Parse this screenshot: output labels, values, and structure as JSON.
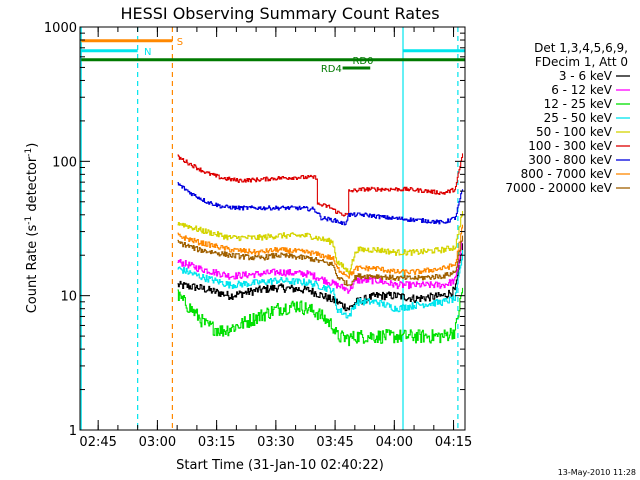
{
  "chart_data": {
    "type": "line",
    "title": "HESSI Observing Summary Count Rates",
    "xlabel": "Start Time (31-Jan-10 02:40:22)",
    "ylabel_main": "Count Rate (s",
    "ylabel_sup1": "-1",
    "ylabel_mid": " detector",
    "ylabel_sup2": "-1",
    "ylabel_end": ")",
    "yscale": "log",
    "ylim": [
      1,
      1000
    ],
    "xlim_minutes": [
      0,
      97.5
    ],
    "x_ticks": [
      {
        "label": "02:45",
        "t": 4.6
      },
      {
        "label": "03:00",
        "t": 19.6
      },
      {
        "label": "03:15",
        "t": 34.6
      },
      {
        "label": "03:30",
        "t": 49.6
      },
      {
        "label": "03:45",
        "t": 64.6
      },
      {
        "label": "04:00",
        "t": 79.6
      },
      {
        "label": "04:15",
        "t": 94.6
      }
    ],
    "y_ticks": [
      {
        "label": "1",
        "v": 1
      },
      {
        "label": "10",
        "v": 10
      },
      {
        "label": "100",
        "v": 100
      },
      {
        "label": "1000",
        "v": 1000
      }
    ],
    "legend_header": [
      "Det 1,3,4,5,6,9,",
      "FDecim 1, Att 0"
    ],
    "series": [
      {
        "name": "3 - 6 keV",
        "color": "#000000",
        "noise": 0.07,
        "points": [
          [
            24.7,
            12
          ],
          [
            30,
            11.5
          ],
          [
            38,
            10
          ],
          [
            45,
            11
          ],
          [
            50,
            11.5
          ],
          [
            58,
            11
          ],
          [
            65,
            9
          ],
          [
            68,
            8
          ],
          [
            70,
            9
          ],
          [
            75,
            10
          ],
          [
            80,
            10
          ],
          [
            85,
            9.5
          ],
          [
            92,
            10
          ],
          [
            95,
            11
          ],
          [
            97,
            25
          ]
        ]
      },
      {
        "name": "6 - 12 keV",
        "color": "#ff00ff",
        "noise": 0.06,
        "points": [
          [
            24.7,
            18
          ],
          [
            30,
            16
          ],
          [
            38,
            14
          ],
          [
            45,
            14.5
          ],
          [
            50,
            15
          ],
          [
            58,
            14.5
          ],
          [
            65,
            12
          ],
          [
            68,
            11
          ],
          [
            70,
            13
          ],
          [
            75,
            13
          ],
          [
            80,
            12
          ],
          [
            85,
            12
          ],
          [
            92,
            12
          ],
          [
            95,
            13
          ],
          [
            97,
            28
          ]
        ]
      },
      {
        "name": "12 - 25 keV",
        "color": "#00e000",
        "noise": 0.12,
        "points": [
          [
            24.7,
            10
          ],
          [
            28,
            8
          ],
          [
            32,
            6
          ],
          [
            36,
            5.5
          ],
          [
            40,
            6
          ],
          [
            45,
            7
          ],
          [
            50,
            8
          ],
          [
            55,
            8.5
          ],
          [
            60,
            7.5
          ],
          [
            64,
            6
          ],
          [
            65,
            5
          ],
          [
            68,
            4.8
          ],
          [
            70,
            5
          ],
          [
            75,
            5
          ],
          [
            80,
            5
          ],
          [
            85,
            5
          ],
          [
            92,
            5
          ],
          [
            95,
            5.5
          ],
          [
            97,
            12
          ]
        ]
      },
      {
        "name": "25 - 50 keV",
        "color": "#00e5ee",
        "noise": 0.06,
        "points": [
          [
            24.7,
            16
          ],
          [
            30,
            14
          ],
          [
            38,
            12
          ],
          [
            45,
            12.5
          ],
          [
            50,
            13
          ],
          [
            58,
            12.5
          ],
          [
            64,
            11
          ],
          [
            65,
            8
          ],
          [
            68,
            7
          ],
          [
            70,
            9
          ],
          [
            75,
            9
          ],
          [
            80,
            8
          ],
          [
            85,
            8.5
          ],
          [
            92,
            9
          ],
          [
            95,
            9.5
          ],
          [
            97,
            22
          ]
        ]
      },
      {
        "name": "50 - 100 keV",
        "color": "#d4d400",
        "noise": 0.05,
        "points": [
          [
            24.7,
            35
          ],
          [
            30,
            31
          ],
          [
            38,
            27
          ],
          [
            45,
            27
          ],
          [
            50,
            28
          ],
          [
            58,
            28
          ],
          [
            64,
            25
          ],
          [
            65,
            18
          ],
          [
            68,
            15
          ],
          [
            70,
            22
          ],
          [
            75,
            22
          ],
          [
            80,
            21
          ],
          [
            85,
            21
          ],
          [
            92,
            22
          ],
          [
            95,
            23
          ],
          [
            97,
            45
          ]
        ]
      },
      {
        "name": "100 - 300 keV",
        "color": "#dd0000",
        "noise": 0.035,
        "points": [
          [
            24.7,
            108
          ],
          [
            28,
            95
          ],
          [
            32,
            82
          ],
          [
            36,
            75
          ],
          [
            40,
            72
          ],
          [
            45,
            73
          ],
          [
            50,
            75
          ],
          [
            55,
            76
          ],
          [
            59.9,
            76
          ],
          [
            60,
            48
          ],
          [
            63,
            46
          ],
          [
            65,
            42
          ],
          [
            67,
            40
          ],
          [
            67.9,
            40
          ],
          [
            68,
            60
          ],
          [
            72,
            62
          ],
          [
            78,
            62
          ],
          [
            83,
            62
          ],
          [
            88,
            60
          ],
          [
            92,
            58
          ],
          [
            95,
            62
          ],
          [
            97,
            120
          ]
        ]
      },
      {
        "name": "300 - 800 keV",
        "color": "#0000dd",
        "noise": 0.035,
        "points": [
          [
            24.7,
            68
          ],
          [
            28,
            58
          ],
          [
            32,
            50
          ],
          [
            36,
            46
          ],
          [
            40,
            45
          ],
          [
            45,
            45
          ],
          [
            50,
            45
          ],
          [
            55,
            45
          ],
          [
            59,
            44
          ],
          [
            60,
            42
          ],
          [
            61,
            38
          ],
          [
            65,
            36
          ],
          [
            67,
            34
          ],
          [
            68,
            40
          ],
          [
            72,
            40
          ],
          [
            78,
            38
          ],
          [
            83,
            37
          ],
          [
            88,
            36
          ],
          [
            92,
            35
          ],
          [
            95,
            38
          ],
          [
            97,
            65
          ]
        ]
      },
      {
        "name": "800 - 7000 keV",
        "color": "#ff8800",
        "noise": 0.045,
        "points": [
          [
            24.7,
            28
          ],
          [
            30,
            25
          ],
          [
            38,
            22
          ],
          [
            45,
            21
          ],
          [
            50,
            22
          ],
          [
            58,
            21
          ],
          [
            64,
            19
          ],
          [
            65,
            16
          ],
          [
            68,
            14
          ],
          [
            70,
            16
          ],
          [
            75,
            16
          ],
          [
            80,
            15
          ],
          [
            85,
            15
          ],
          [
            92,
            16
          ],
          [
            95,
            17
          ],
          [
            97,
            35
          ]
        ]
      },
      {
        "name": "7000 - 20000 keV",
        "color": "#a06000",
        "noise": 0.045,
        "points": [
          [
            24.7,
            25
          ],
          [
            30,
            22
          ],
          [
            38,
            20
          ],
          [
            45,
            19
          ],
          [
            50,
            20
          ],
          [
            58,
            19
          ],
          [
            64,
            17
          ],
          [
            65,
            14
          ],
          [
            68,
            12
          ],
          [
            70,
            14
          ],
          [
            75,
            14
          ],
          [
            80,
            13.5
          ],
          [
            85,
            13.5
          ],
          [
            92,
            14
          ],
          [
            95,
            15
          ],
          [
            97,
            30
          ]
        ]
      }
    ],
    "vertical_lines": [
      {
        "t": 0.3,
        "color": "#00e5ee",
        "dash": false
      },
      {
        "t": 14.6,
        "color": "#00e5ee",
        "dash": true
      },
      {
        "t": 23.4,
        "color": "#ff8800",
        "dash": true
      },
      {
        "t": 81.8,
        "color": "#00e5ee",
        "dash": false
      },
      {
        "t": 95.7,
        "color": "#00e5ee",
        "dash": true
      }
    ],
    "flag_bars": [
      {
        "label": "S",
        "color": "#ff8800",
        "t0": 0.3,
        "t1": 23.4,
        "v": 790,
        "label_t": 24.5
      },
      {
        "label": "N",
        "color": "#00e5ee",
        "t0": 0.3,
        "t1": 14.6,
        "v": 665,
        "label_t": 16.2
      },
      {
        "label": "N",
        "color": "#00e5ee",
        "t0": 81.8,
        "t1": 97.5,
        "v": 665,
        "label_t": null
      },
      {
        "label": "RD0",
        "color": "#007a00",
        "t0": 0.3,
        "t1": 97.5,
        "v": 570,
        "label_t": 69
      },
      {
        "label": "RD4",
        "color": "#007a00",
        "t0": 66.5,
        "t1": 73.5,
        "v": 495,
        "label_t": 61
      }
    ]
  },
  "timestamp": "13-May-2010 11:28"
}
